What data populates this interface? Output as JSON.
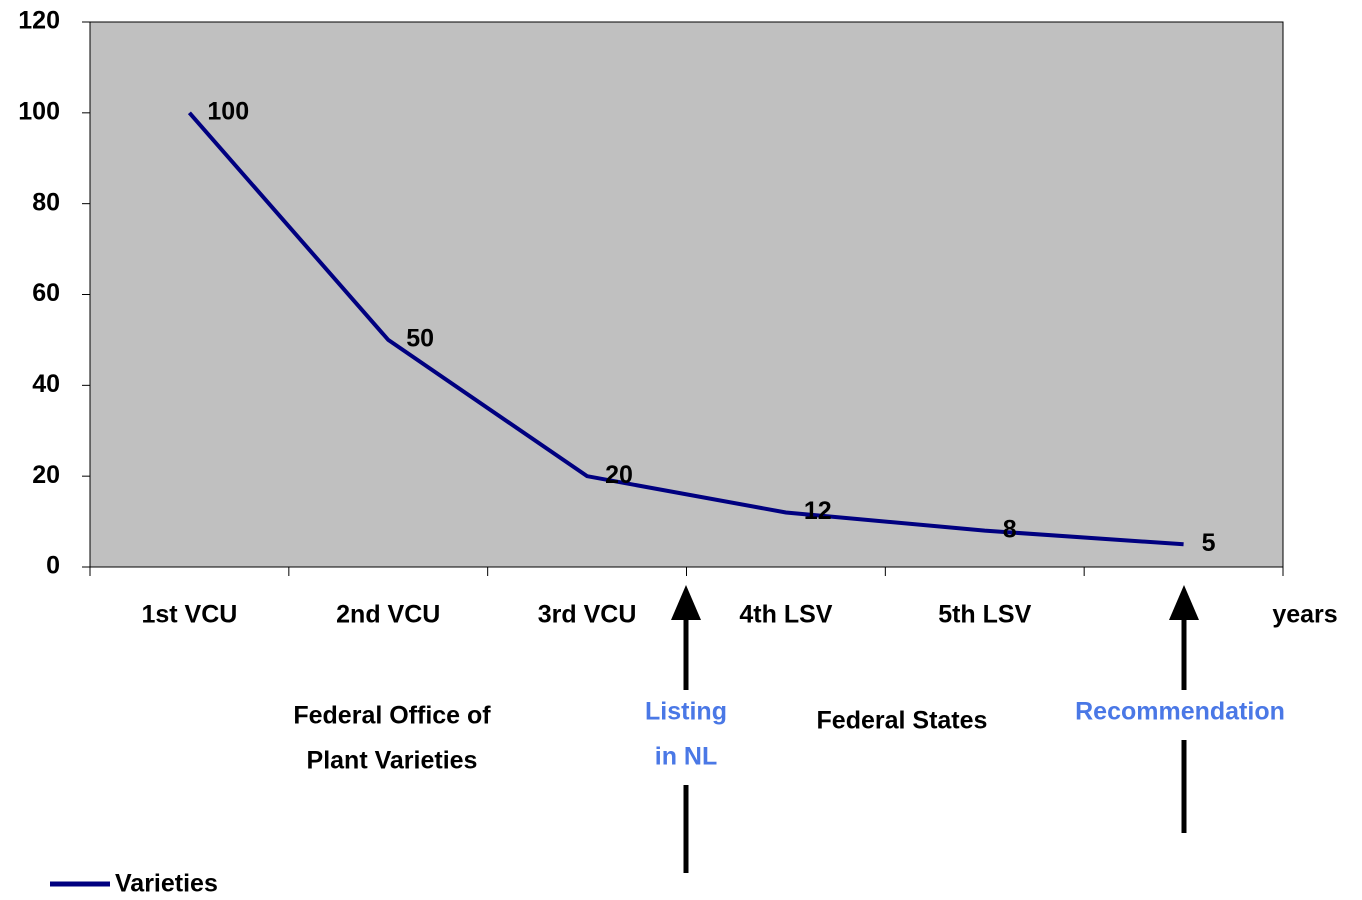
{
  "chart_data": {
    "type": "line",
    "categories": [
      "1st VCU",
      "2nd VCU",
      "3rd VCU",
      "4th LSV",
      "5th LSV",
      null
    ],
    "series": [
      {
        "name": "Varieties",
        "color": "#000080",
        "values": [
          100,
          50,
          20,
          12,
          8,
          5
        ]
      }
    ],
    "ylim": [
      0,
      120
    ],
    "yticks": [
      0,
      20,
      40,
      60,
      80,
      100,
      120
    ],
    "x_label": "years",
    "plot_background": "#c0c0c0",
    "legend": "bottom-left",
    "annotations": [
      {
        "lines": [
          "Federal Office of",
          "Plant Varieties"
        ],
        "color": "#000000"
      },
      {
        "lines": [
          "Listing",
          "in NL"
        ],
        "color": "#4a78e6"
      },
      {
        "lines": [
          "Federal States"
        ],
        "color": "#000000"
      },
      {
        "lines": [
          "Recommendation"
        ],
        "color": "#4a78e6"
      }
    ]
  }
}
